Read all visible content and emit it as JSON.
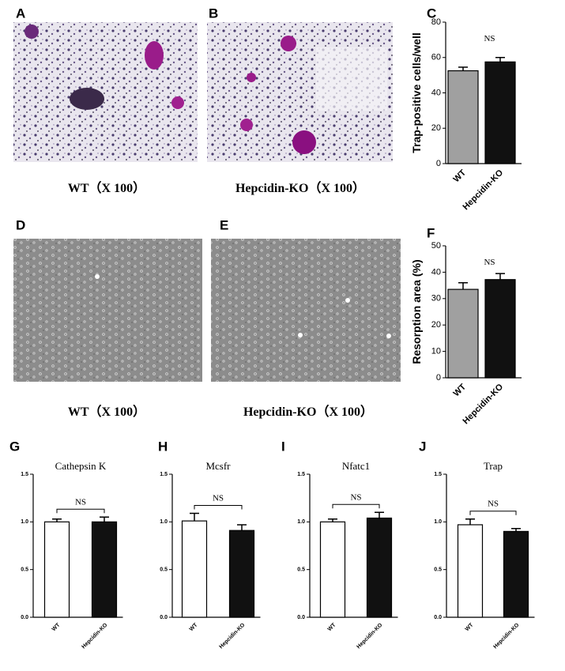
{
  "panel_labels": [
    "A",
    "B",
    "C",
    "D",
    "E",
    "F",
    "G",
    "H",
    "I",
    "J"
  ],
  "captions": [
    "WT（X 100）",
    "Hepcidin-KO（X 100）",
    "WT（X 100）",
    "Hepcidin-KO（X 100）"
  ],
  "chart_data": [
    {
      "type": "bar",
      "ylabel": "Trap-positive cells/well",
      "annotation": "NS",
      "categories": [
        "WT",
        "Hepcidin-KO"
      ],
      "values": [
        52.5,
        57.5
      ],
      "errors": [
        2,
        2.5
      ],
      "colors": [
        "#a0a0a0",
        "#111111"
      ],
      "ylim": [
        0,
        80
      ],
      "yticks": [
        0,
        20,
        40,
        60,
        80
      ]
    },
    {
      "type": "bar",
      "ylabel": "Resorption area (%)",
      "annotation": "NS",
      "categories": [
        "WT",
        "Hepcidin-KO"
      ],
      "values": [
        33.5,
        37.2
      ],
      "errors": [
        2.5,
        2.3
      ],
      "colors": [
        "#a0a0a0",
        "#111111"
      ],
      "ylim": [
        0,
        50
      ],
      "yticks": [
        0,
        10,
        20,
        30,
        40,
        50
      ]
    },
    {
      "type": "bar",
      "title": "Cathepsin K",
      "annotation": "NS",
      "categories": [
        "WT",
        "Hepcidin-KO"
      ],
      "values": [
        1.0,
        1.0
      ],
      "errors": [
        0.03,
        0.05
      ],
      "colors": [
        "#ffffff",
        "#111111"
      ],
      "ylim": [
        0,
        1.5
      ],
      "yticks": [
        {
          "value": 0,
          "label": "0.0"
        },
        0.5,
        {
          "value": 1,
          "label": "1.0"
        },
        1.5
      ]
    },
    {
      "type": "bar",
      "title": "Mcsfr",
      "annotation": "NS",
      "categories": [
        "WT",
        "Hepcidin-KO"
      ],
      "values": [
        1.01,
        0.91
      ],
      "errors": [
        0.08,
        0.06
      ],
      "colors": [
        "#ffffff",
        "#111111"
      ],
      "ylim": [
        0,
        1.5
      ],
      "yticks": [
        {
          "value": 0,
          "label": "0.0"
        },
        0.5,
        {
          "value": 1,
          "label": "1.0"
        },
        1.5
      ]
    },
    {
      "type": "bar",
      "title": "Nfatc1",
      "annotation": "NS",
      "categories": [
        "WT",
        "Hepcidin-KO"
      ],
      "values": [
        1.0,
        1.04
      ],
      "errors": [
        0.03,
        0.06
      ],
      "colors": [
        "#ffffff",
        "#111111"
      ],
      "ylim": [
        0,
        1.5
      ],
      "yticks": [
        {
          "value": 0,
          "label": "0.0"
        },
        0.5,
        {
          "value": 1,
          "label": "1.0"
        },
        1.5
      ]
    },
    {
      "type": "bar",
      "title": "Trap",
      "annotation": "NS",
      "categories": [
        "WT",
        "Hepcidin-KO"
      ],
      "values": [
        0.97,
        0.9
      ],
      "errors": [
        0.06,
        0.03
      ],
      "colors": [
        "#ffffff",
        "#111111"
      ],
      "ylim": [
        0,
        1.5
      ],
      "yticks": [
        {
          "value": 0,
          "label": "0.0"
        },
        0.5,
        {
          "value": 1,
          "label": "1.0"
        },
        1.5
      ]
    }
  ]
}
